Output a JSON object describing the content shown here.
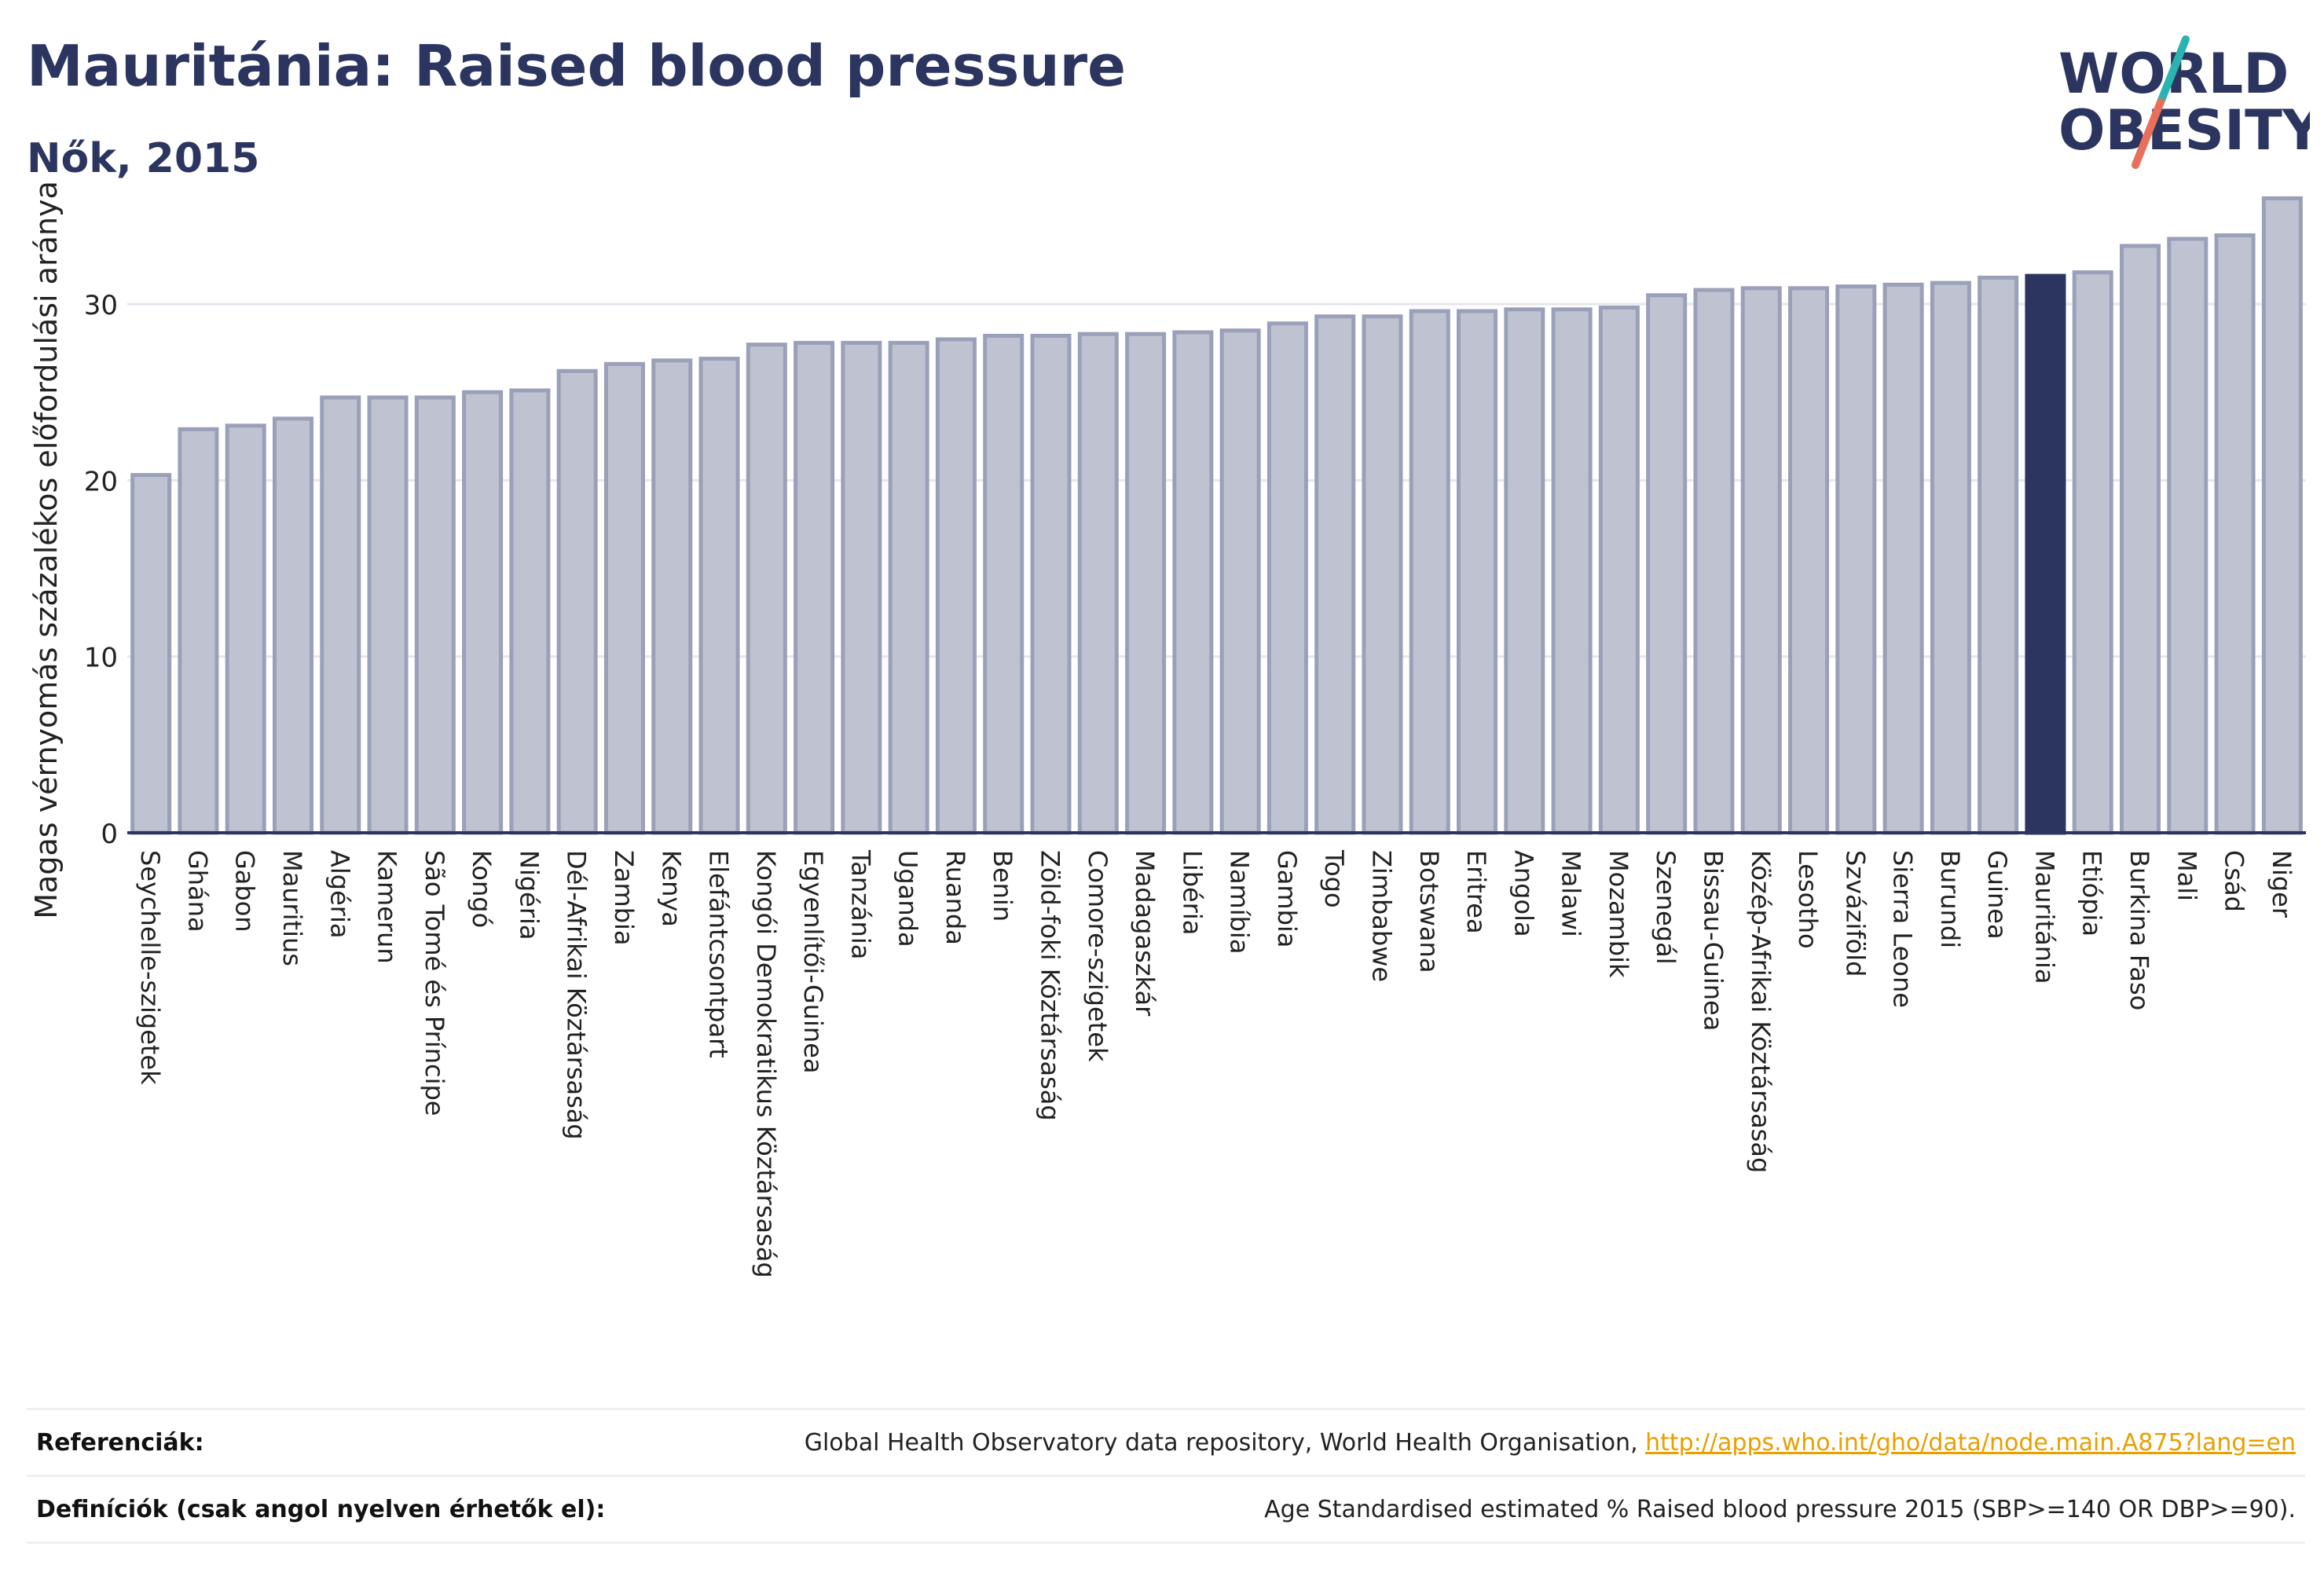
{
  "header": {
    "title": "Mauritánia: Raised blood pressure",
    "subtitle": "Nők, 2015"
  },
  "logo": {
    "line1": "WORLD",
    "line2": "OBESITY",
    "colors": {
      "text": "#2b3560",
      "slash_top": "#2ab3b1",
      "slash_bottom": "#e8705a"
    }
  },
  "colors": {
    "bar": "#bfc3d1",
    "bar_stroke": "#9aa0b8",
    "highlight": "#2b3560",
    "axis": "#2b3560",
    "grid": "#e6e6ee"
  },
  "chart_data": {
    "type": "bar",
    "title": "Mauritánia: Raised blood pressure",
    "subtitle": "Nők, 2015",
    "ylabel": "Magas vérnyomás százalékos előfordulási aránya",
    "xlabel": "",
    "ylim": [
      0,
      37
    ],
    "yticks": [
      0,
      10,
      20,
      30
    ],
    "grid": true,
    "highlight": "Mauritánia",
    "categories": [
      "Seychelle-szigetek",
      "Ghána",
      "Gabon",
      "Mauritius",
      "Algéria",
      "Kamerun",
      "São Tomé és Príncipe",
      "Kongó",
      "Nigéria",
      "Dél-Afrikai Köztársaság",
      "Zambia",
      "Kenya",
      "Elefántcsontpart",
      "Kongói Demokratikus Köztársaság",
      "Egyenlítői-Guinea",
      "Tanzánia",
      "Uganda",
      "Ruanda",
      "Benin",
      "Zöld-foki Köztársaság",
      "Comore-szigetek",
      "Madagaszkár",
      "Libéria",
      "Namíbia",
      "Gambia",
      "Togo",
      "Zimbabwe",
      "Botswana",
      "Eritrea",
      "Angola",
      "Malawi",
      "Mozambik",
      "Szenegál",
      "Bissau-Guinea",
      "Közép-Afrikai Köztársaság",
      "Lesotho",
      "Szváziföld",
      "Sierra Leone",
      "Burundi",
      "Guinea",
      "Mauritánia",
      "Etiópia",
      "Burkina Faso",
      "Mali",
      "Csád",
      "Niger"
    ],
    "values": [
      20.3,
      22.9,
      23.1,
      23.5,
      24.7,
      24.7,
      24.7,
      25.0,
      25.1,
      26.2,
      26.6,
      26.8,
      26.9,
      27.7,
      27.8,
      27.8,
      27.8,
      28.0,
      28.2,
      28.2,
      28.3,
      28.3,
      28.4,
      28.5,
      28.9,
      29.3,
      29.3,
      29.6,
      29.6,
      29.7,
      29.7,
      29.8,
      30.5,
      30.8,
      30.9,
      30.9,
      31.0,
      31.1,
      31.2,
      31.5,
      31.6,
      31.8,
      33.3,
      33.7,
      33.9,
      36.0
    ]
  },
  "references": {
    "ref_label": "Referenciák:",
    "ref_text": "Global Health Observatory data repository, World Health Organisation, ",
    "ref_link": "http://apps.who.int/gho/data/node.main.A875?lang=en",
    "def_label": "Definíciók (csak angol nyelven érhetők el):",
    "def_text": "Age Standardised estimated % Raised blood pressure 2015 (SBP>=140 OR DBP>=90)."
  }
}
